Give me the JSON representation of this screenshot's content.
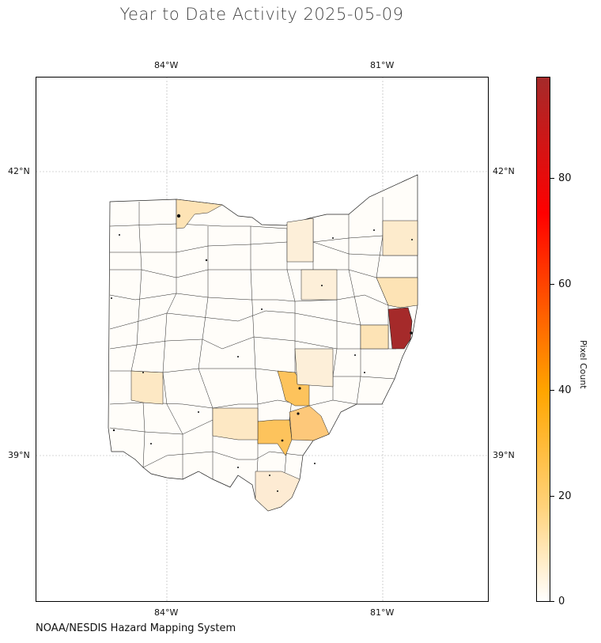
{
  "title": "Year to Date Activity 2025-05-09",
  "credit": "NOAA/NESDIS Hazard Mapping System",
  "map": {
    "lon_ticks_top": [
      "84°W",
      "81°W"
    ],
    "lon_ticks_bottom": [
      "84°W",
      "81°W"
    ],
    "lat_ticks_left": [
      "42°N",
      "39°N"
    ],
    "lat_ticks_right": [
      "42°N",
      "39°N"
    ],
    "grid": true,
    "region": "Ohio counties"
  },
  "colorbar": {
    "title": "Pixel Count",
    "ticks": [
      "0",
      "20",
      "40",
      "60",
      "80"
    ],
    "range": [
      0,
      97
    ],
    "colors": [
      "#ffffff",
      "#ffd27a",
      "#ffa500",
      "#ff0000",
      "#a52a2a"
    ]
  },
  "highlights": {
    "max_county_color": "#a52a2a",
    "mid_county_color": "#fdc35c",
    "low_county_color": "#fde3b5",
    "trace_county_color": "#fef3e3"
  }
}
